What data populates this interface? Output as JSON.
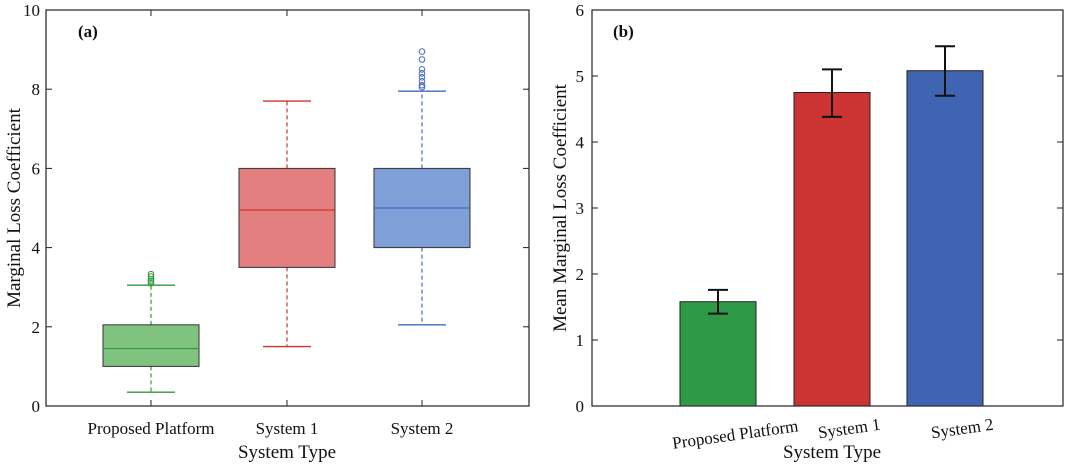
{
  "chart_data": [
    {
      "type": "box",
      "panel_label": "(a)",
      "xlabel": "System Type",
      "ylabel": "Marginal Loss Coefficient",
      "ylim": [
        0,
        10
      ],
      "yticks": [
        0,
        2,
        4,
        6,
        8,
        10
      ],
      "grid": false,
      "categories": [
        "Proposed Platform",
        "System 1",
        "System 2"
      ],
      "boxes": [
        {
          "name": "Proposed Platform",
          "whisker_low": 0.35,
          "q1": 1.0,
          "median": 1.45,
          "q3": 2.05,
          "whisker_high": 3.05,
          "outliers": [
            3.1,
            3.15,
            3.2,
            3.27,
            3.33
          ],
          "color": "#2e9a3e",
          "fill": "#7fc37f"
        },
        {
          "name": "System 1",
          "whisker_low": 1.5,
          "q1": 3.5,
          "median": 4.95,
          "q3": 6.0,
          "whisker_high": 7.7,
          "outliers": [],
          "color": "#cc3333",
          "fill": "#e47f7f"
        },
        {
          "name": "System 2",
          "whisker_low": 2.05,
          "q1": 4.0,
          "median": 5.0,
          "q3": 6.0,
          "whisker_high": 7.95,
          "outliers": [
            8.05,
            8.1,
            8.2,
            8.3,
            8.4,
            8.5,
            8.75,
            8.95
          ],
          "color": "#4169c1",
          "fill": "#7f9fd8"
        }
      ]
    },
    {
      "type": "bar",
      "panel_label": "(b)",
      "xlabel": "System Type",
      "ylabel": "Mean Marginal Loss Coefficient",
      "ylim": [
        0,
        6
      ],
      "yticks": [
        0,
        1,
        2,
        3,
        4,
        5,
        6
      ],
      "grid": false,
      "categories": [
        "Proposed Platform",
        "System 1",
        "System 2"
      ],
      "values": [
        1.58,
        4.75,
        5.08
      ],
      "error_low": [
        1.4,
        4.38,
        4.7
      ],
      "error_high": [
        1.76,
        5.1,
        5.45
      ],
      "colors": [
        "#2e9a48",
        "#cc3333",
        "#3e64b2"
      ]
    }
  ]
}
